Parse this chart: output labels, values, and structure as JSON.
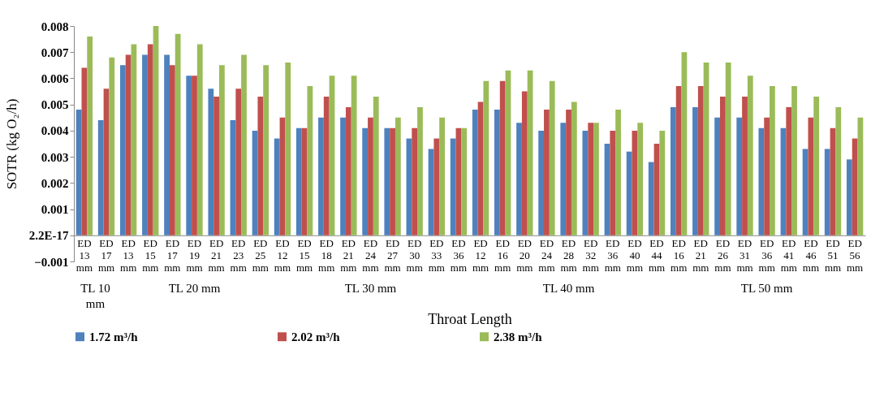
{
  "chart_data": {
    "type": "bar",
    "ylabel": "SOTR (kg O₂/h)",
    "xlabel": "Throat Length",
    "categories": [
      "ED 13 mm",
      "ED 17 mm",
      "ED 13 mm",
      "ED 15 mm",
      "ED 17 mm",
      "ED 19 mm",
      "ED 21 mm",
      "ED 23 mm",
      "ED 25 mm",
      "ED 12 mm",
      "ED 15 mm",
      "ED 18 mm",
      "ED 21 mm",
      "ED 24 mm",
      "ED 27 mm",
      "ED 30 mm",
      "ED 33 mm",
      "ED 36 mm",
      "ED 12 mm",
      "ED 16 mm",
      "ED 20 mm",
      "ED 24 mm",
      "ED 28 mm",
      "ED 32 mm",
      "ED 36 mm",
      "ED 40 mm",
      "ED 44 mm",
      "ED 16 mm",
      "ED 21 mm",
      "ED 26 mm",
      "ED 31 mm",
      "ED 36 mm",
      "ED 41 mm",
      "ED 46 mm",
      "ED 51 mm",
      "ED 56 mm"
    ],
    "annotations": [
      "TL 10 mm",
      "TL 20 mm",
      "TL 30 mm",
      "TL 40 mm",
      "TL 50 mm"
    ],
    "series": [
      {
        "name": "1.72 m³/h",
        "color": "#4f81bd",
        "values": [
          0.0048,
          0.0044,
          0.0065,
          0.0069,
          0.0069,
          0.0061,
          0.0056,
          0.0044,
          0.004,
          0.0037,
          0.0041,
          0.0045,
          0.0045,
          0.0041,
          0.0041,
          0.0037,
          0.0033,
          0.0037,
          0.0048,
          0.0048,
          0.0043,
          0.004,
          0.0043,
          0.004,
          0.0035,
          0.0032,
          0.0028,
          0.0049,
          0.0049,
          0.0045,
          0.0045,
          0.0041,
          0.0041,
          0.0033,
          0.0033,
          0.0029
        ]
      },
      {
        "name": "2.02 m³/h",
        "color": "#c0504d",
        "values": [
          0.0064,
          0.0056,
          0.0069,
          0.0073,
          0.0065,
          0.0061,
          0.0053,
          0.0056,
          0.0053,
          0.0045,
          0.0041,
          0.0053,
          0.0049,
          0.0045,
          0.0041,
          0.0041,
          0.0037,
          0.0041,
          0.0051,
          0.0059,
          0.0055,
          0.0048,
          0.0048,
          0.0043,
          0.004,
          0.004,
          0.0035,
          0.0057,
          0.0057,
          0.0053,
          0.0053,
          0.0045,
          0.0049,
          0.0045,
          0.0041,
          0.0037
        ]
      },
      {
        "name": "2.38 m³/h",
        "color": "#9bbb59",
        "values": [
          0.0076,
          0.0068,
          0.0073,
          0.008,
          0.0077,
          0.0073,
          0.0065,
          0.0069,
          0.0065,
          0.0066,
          0.0057,
          0.0061,
          0.0061,
          0.0053,
          0.0045,
          0.0049,
          0.0045,
          0.0041,
          0.0059,
          0.0063,
          0.0063,
          0.0059,
          0.0051,
          0.0043,
          0.0048,
          0.0043,
          0.004,
          0.007,
          0.0066,
          0.0066,
          0.0061,
          0.0057,
          0.0057,
          0.0053,
          0.0049,
          0.0045
        ]
      }
    ],
    "ylim": [
      -0.001,
      0.008
    ],
    "yticks": [
      -0.001,
      {
        "value": 0,
        "label": "2.2E-17"
      },
      0.001,
      0.002,
      0.003,
      0.004,
      0.005,
      0.006,
      0.007,
      0.008
    ],
    "grid": false,
    "legend": "bottom"
  }
}
